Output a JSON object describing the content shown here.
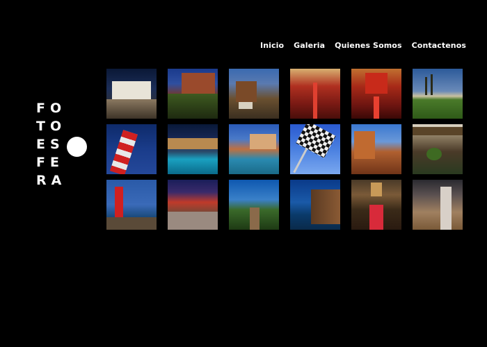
{
  "nav": {
    "items": [
      {
        "label": "Inicio"
      },
      {
        "label": "Galeria"
      },
      {
        "label": "Quienes Somos"
      },
      {
        "label": "Contactenos"
      }
    ]
  },
  "logo": {
    "rows": [
      "FO",
      "TO",
      "ES",
      "FE",
      "RA"
    ]
  },
  "gallery": {
    "thumbnails": [
      {
        "icon": "night-building-photo"
      },
      {
        "icon": "garden-hotel-photo"
      },
      {
        "icon": "patio-house-photo"
      },
      {
        "icon": "theater-interior-photo"
      },
      {
        "icon": "red-auditorium-photo"
      },
      {
        "icon": "palm-golf-photo"
      },
      {
        "icon": "lighthouse-photo"
      },
      {
        "icon": "night-pool-photo"
      },
      {
        "icon": "resort-pool-photo"
      },
      {
        "icon": "checkered-flag-photo"
      },
      {
        "icon": "red-rock-coast-photo"
      },
      {
        "icon": "courtyard-photo"
      },
      {
        "icon": "red-lighthouse-photo"
      },
      {
        "icon": "bar-terrace-photo"
      },
      {
        "icon": "forest-bridge-photo"
      },
      {
        "icon": "sea-cliff-photo"
      },
      {
        "icon": "church-aisle-photo"
      },
      {
        "icon": "statue-photo"
      }
    ]
  }
}
